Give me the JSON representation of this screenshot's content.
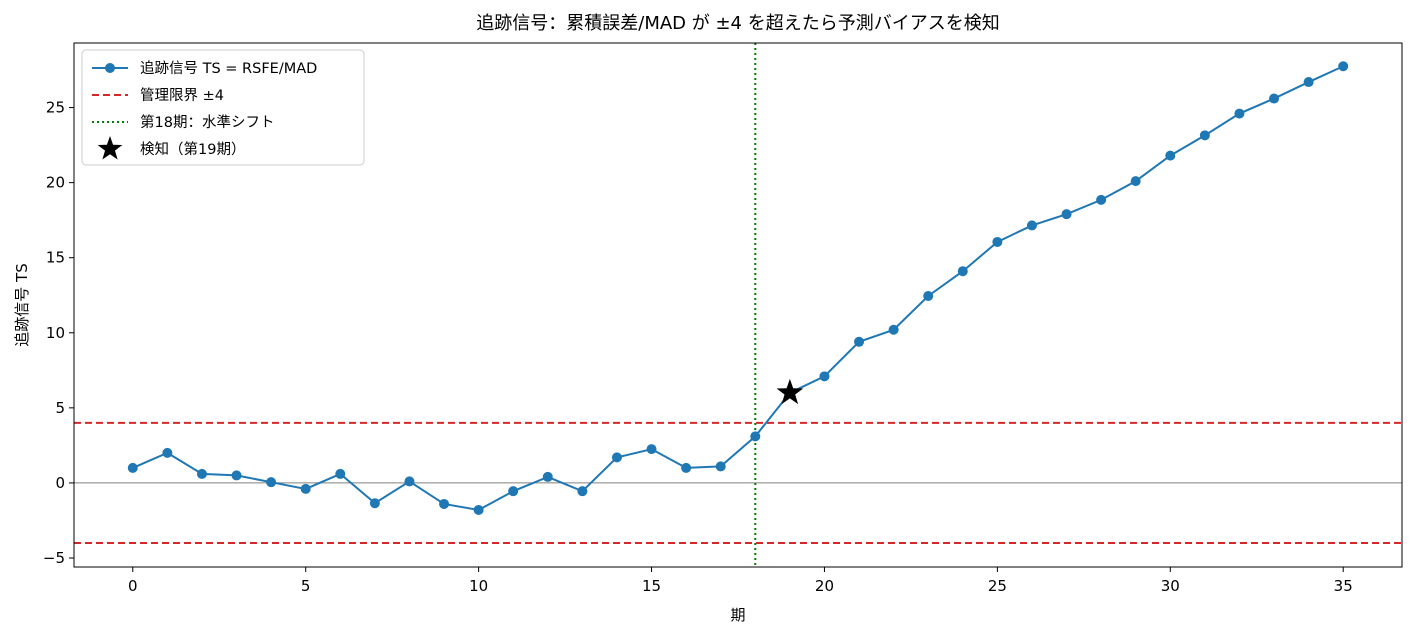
{
  "chart_data": {
    "type": "line",
    "title": "追跡信号：累積誤差/MAD が ±4 を超えたら予測バイアスを検知",
    "xlabel": "期",
    "ylabel": "追跡信号 TS",
    "xlim": [
      -1.7,
      36.7
    ],
    "ylim": [
      -5.6,
      29.3
    ],
    "xticks": [
      0,
      5,
      10,
      15,
      20,
      25,
      30,
      35
    ],
    "yticks": [
      -5,
      0,
      5,
      10,
      15,
      20,
      25
    ],
    "grid": false,
    "legend_position": "top-left",
    "series": [
      {
        "name": "追跡信号 TS = RSFE/MAD",
        "color": "#1f77b4",
        "x": [
          0,
          1,
          2,
          3,
          4,
          5,
          6,
          7,
          8,
          9,
          10,
          11,
          12,
          13,
          14,
          15,
          16,
          17,
          18,
          19,
          20,
          21,
          22,
          23,
          24,
          25,
          26,
          27,
          28,
          29,
          30,
          31,
          32,
          33,
          34,
          35
        ],
        "y": [
          1.0,
          2.0,
          0.6,
          0.5,
          0.05,
          -0.4,
          0.6,
          -1.35,
          0.1,
          -1.4,
          -1.8,
          -0.55,
          0.4,
          -0.55,
          1.7,
          2.25,
          1.0,
          1.1,
          3.1,
          6.0,
          7.1,
          9.4,
          10.2,
          12.45,
          14.1,
          16.05,
          17.15,
          17.9,
          18.85,
          20.1,
          21.8,
          23.15,
          24.6,
          25.6,
          26.7,
          27.75
        ]
      }
    ],
    "reference_lines": [
      {
        "name": "管理限界 ±4",
        "values": [
          4,
          -4
        ],
        "color": "#d62728",
        "style": "dashed"
      },
      {
        "name": "zero",
        "value": 0,
        "color": "#808080",
        "style": "solid"
      }
    ],
    "vertical_line": {
      "name": "第18期：水準シフト",
      "x": 18,
      "color": "#008000",
      "style": "dotted"
    },
    "marker": {
      "name": "検知（第19期）",
      "x": 19,
      "y": 6.0,
      "color": "#000000",
      "shape": "star"
    }
  }
}
